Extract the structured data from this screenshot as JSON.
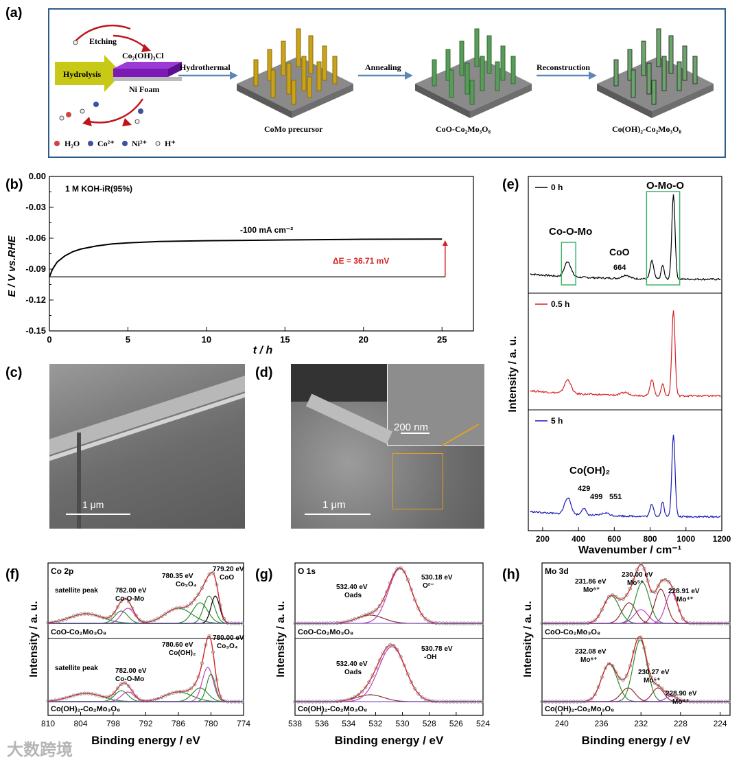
{
  "panel_a": {
    "label": "(a)",
    "etching": "Etching",
    "hydrolysis": "Hydrolysis",
    "co_compound": "Co₂(OH)₃Cl",
    "ni_foam": "Ni Foam",
    "step1": "Hydrothermal",
    "step2": "Annealing",
    "step3": "Reconstruction",
    "stage1": "CoMo precursor",
    "stage2": "CoO-Co₂Mo₃O₈",
    "stage3": "Co(OH)₂-Co₂Mo₃O₈",
    "legend": [
      "H₂O",
      "Co²⁺",
      "Ni²⁺",
      "H⁺"
    ]
  },
  "panel_c": {
    "label": "(c)",
    "scale": "1 μm"
  },
  "panel_d": {
    "label": "(d)",
    "scale_main": "1 μm",
    "scale_inset": "200 nm"
  },
  "watermark": "大数跨境",
  "chart_data": [
    {
      "id": "b",
      "label": "(b)",
      "type": "line",
      "title": "",
      "annotation": "1 M KOH-iR(95%)",
      "current": "-100 mA cm⁻²",
      "delta": "ΔE = 36.71 mV",
      "xlabel": "t / h",
      "ylabel": "E / V vs.RHE",
      "xlim": [
        0,
        27
      ],
      "ylim": [
        -0.15,
        0.0
      ],
      "xticks": [
        "0",
        "5",
        "10",
        "15",
        "20",
        "25"
      ],
      "yticks": [
        "0.00",
        "-0.03",
        "-0.06",
        "-0.09",
        "-0.12",
        "-0.15"
      ],
      "x": [
        0,
        0.2,
        0.5,
        1,
        1.5,
        2,
        3,
        4,
        5,
        7,
        10,
        15,
        20,
        25
      ],
      "y": [
        -0.0975,
        -0.09,
        -0.083,
        -0.077,
        -0.073,
        -0.0705,
        -0.0675,
        -0.0655,
        -0.0645,
        -0.0632,
        -0.0624,
        -0.0617,
        -0.061,
        -0.0608
      ],
      "baseline": -0.0975
    },
    {
      "id": "e",
      "label": "(e)",
      "type": "line",
      "xlabel": "Wavenumber / cm⁻¹",
      "ylabel": "Intensity / a. u.",
      "xlim": [
        120,
        1200
      ],
      "xticks": [
        "200",
        "400",
        "600",
        "800",
        "1000",
        "1200"
      ],
      "series": [
        {
          "name": "0 h",
          "color": "#000000"
        },
        {
          "name": "0.5 h",
          "color": "#d62020"
        },
        {
          "name": "5 h",
          "color": "#1a1ab4"
        }
      ],
      "annotations": [
        "Co-O-Mo",
        "O-Mo-O",
        "CoO",
        "664",
        "Co(OH)₂",
        "429",
        "499",
        "551"
      ]
    },
    {
      "id": "f",
      "label": "(f)",
      "type": "line",
      "title": "Co 2p",
      "xlabel": "Binding energy / eV",
      "ylabel": "Intensity / a. u.",
      "xlim": [
        810,
        774
      ],
      "xticks": [
        "810",
        "804",
        "798",
        "792",
        "786",
        "780",
        "774"
      ],
      "top": {
        "sample": "CoO-Co₂Mo₃O₈",
        "peaks": [
          "satellite peak",
          "782.00 eV",
          "Co-O-Mo",
          "780.35 eV",
          "Co₃O₄",
          "779.20 eV",
          "CoO"
        ]
      },
      "bottom": {
        "sample": "Co(OH)₂-Co₂Mo₃O₈",
        "peaks": [
          "satellite peak",
          "782.00 eV",
          "Co-O-Mo",
          "780.60 eV",
          "Co(OH)₂",
          "780.00 eV",
          "Co₃O₄"
        ]
      }
    },
    {
      "id": "g",
      "label": "(g)",
      "type": "line",
      "title": "O 1s",
      "xlabel": "Binding energy / eV",
      "ylabel": "Intensity / a. u.",
      "xlim": [
        538,
        524
      ],
      "xticks": [
        "538",
        "536",
        "534",
        "532",
        "530",
        "528",
        "526",
        "524"
      ],
      "top": {
        "sample": "CoO-Co₂Mo₃O₈",
        "peaks": [
          "532.40 eV",
          "Oads",
          "530.18 eV",
          "O²⁻"
        ]
      },
      "bottom": {
        "sample": "Co(OH)₂-Co₂Mo₃O₈",
        "peaks": [
          "532.40 eV",
          "Oads",
          "530.78 eV",
          "-OH"
        ]
      }
    },
    {
      "id": "h",
      "label": "(h)",
      "type": "line",
      "title": "Mo 3d",
      "xlabel": "Binding energy / eV",
      "ylabel": "Intensity / a. u.",
      "xlim": [
        242,
        223
      ],
      "xticks": [
        "240",
        "236",
        "232",
        "228",
        "224"
      ],
      "top": {
        "sample": "CoO-Co₂Mo₃O₈",
        "peaks": [
          "231.86 eV",
          "Mo⁶⁺",
          "230.00 eV",
          "Mo⁵⁺",
          "228.91 eV",
          "Mo⁴⁺"
        ]
      },
      "bottom": {
        "sample": "Co(OH)₂-Co₂Mo₃O₈",
        "peaks": [
          "232.08 eV",
          "Mo⁶⁺",
          "230.27 eV",
          "Mo⁵⁺",
          "228.90 eV",
          "Mo⁴⁺"
        ]
      }
    }
  ]
}
